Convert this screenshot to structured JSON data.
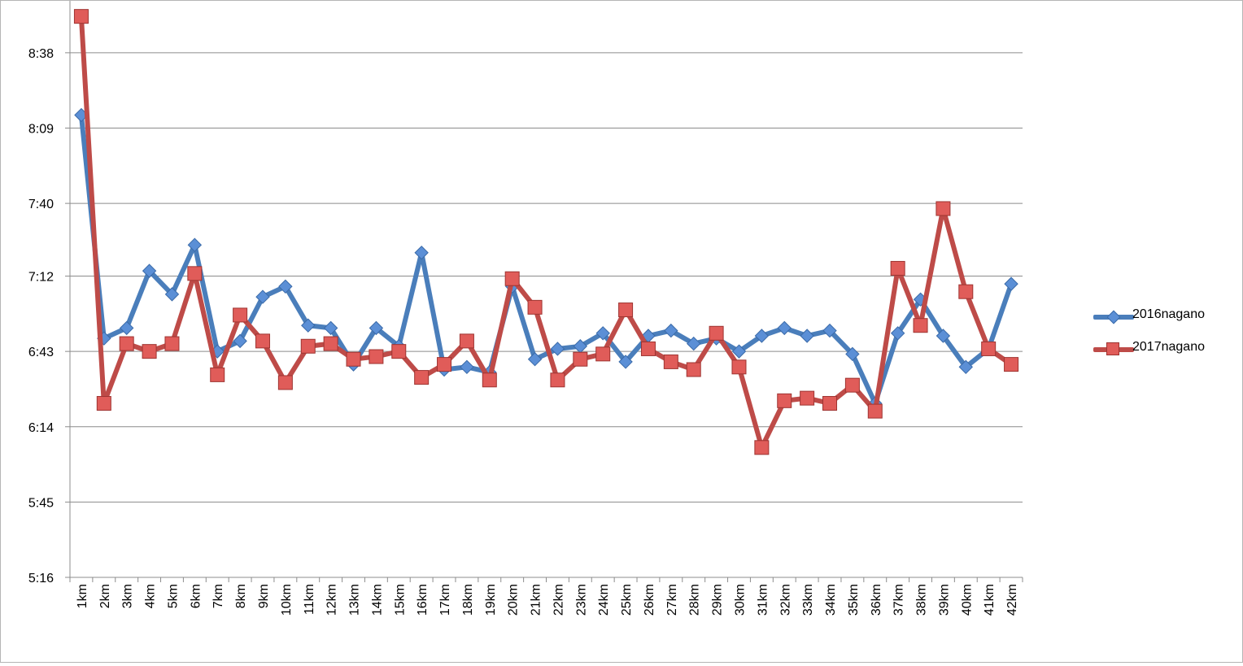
{
  "chart_data": {
    "type": "line",
    "categories": [
      "1km",
      "2km",
      "3km",
      "4km",
      "5km",
      "6km",
      "7km",
      "8km",
      "9km",
      "10km",
      "11km",
      "12km",
      "13km",
      "14km",
      "15km",
      "16km",
      "17km",
      "18km",
      "19km",
      "20km",
      "21km",
      "22km",
      "23km",
      "24km",
      "25km",
      "26km",
      "27km",
      "28km",
      "29km",
      "30km",
      "31km",
      "32km",
      "33km",
      "34km",
      "35km",
      "36km",
      "37km",
      "38km",
      "39km",
      "40km",
      "41km",
      "42km"
    ],
    "y_ticks": [
      "5:16",
      "5:45",
      "6:14",
      "6:43",
      "7:12",
      "7:40",
      "8:09",
      "8:38"
    ],
    "ylim": [
      316,
      538
    ],
    "grid": true,
    "legend_position": "right",
    "series": [
      {
        "name": "2016nagano",
        "color": "#4a7ebb",
        "marker": "diamond",
        "values": [
          494,
          408,
          412,
          434,
          425,
          444,
          403,
          407,
          424,
          428,
          413,
          412,
          398,
          412,
          405,
          441,
          396,
          397,
          395,
          428,
          400,
          404,
          405,
          410,
          399,
          409,
          411,
          406,
          408,
          403,
          409,
          412,
          409,
          411,
          402,
          383,
          410,
          423,
          409,
          397,
          404,
          429
        ]
      },
      {
        "name": "2017nagano",
        "color": "#be4b48",
        "marker": "square",
        "values": [
          532,
          383,
          406,
          403,
          406,
          433,
          394,
          417,
          407,
          391,
          405,
          406,
          400,
          401,
          403,
          393,
          398,
          407,
          392,
          431,
          420,
          392,
          400,
          402,
          419,
          404,
          399,
          396,
          410,
          397,
          366,
          384,
          385,
          383,
          390,
          380,
          435,
          413,
          458,
          426,
          404,
          398
        ]
      }
    ]
  }
}
